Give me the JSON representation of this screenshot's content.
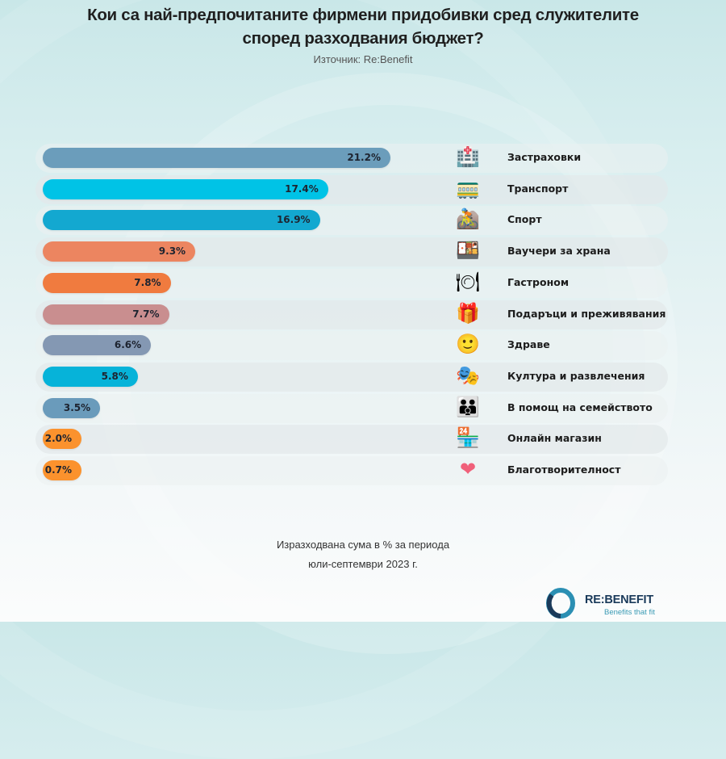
{
  "header": {
    "title_line1": "Кои са най-предпочитаните фирмени придобивки сред служителите",
    "title_line2": "според разходвания бюджет?",
    "source": "Източник: Re:Benefit"
  },
  "chart_data": {
    "type": "bar",
    "orientation": "horizontal",
    "title": "Кои са най-предпочитаните фирмени придобивки сред служителите според разходвания бюджет?",
    "subtitle": "Източник: Re:Benefit",
    "xlabel": "Изразходвана сума в % за периода юли-септември 2023 г.",
    "ylabel": "",
    "unit": "%",
    "grid": false,
    "legend": "none",
    "xlim": [
      0,
      21.2
    ],
    "categories": [
      "Застраховки",
      "Транспорт",
      "Спорт",
      "Ваучери за храна",
      "Гастроном",
      "Подаръци и преживявания",
      "Здраве",
      "Култура и развлечения",
      "В помощ на семейството",
      "Онлайн магазин",
      "Благотворителност"
    ],
    "values": [
      21.2,
      17.4,
      16.9,
      9.3,
      7.8,
      7.7,
      6.6,
      5.8,
      3.5,
      2.0,
      0.7
    ],
    "value_labels": [
      "21.2%",
      "17.4%",
      "16.9%",
      "9.3%",
      "7.8%",
      "7.7%",
      "6.6%",
      "5.8%",
      "3.5%",
      "2.0%",
      "0.7%"
    ],
    "colors": [
      "#6b9dbb",
      "#00c3e6",
      "#13a8d0",
      "#ec8560",
      "#f07b3f",
      "#c98e8f",
      "#8498b3",
      "#06b3d9",
      "#6a9bbb",
      "#fb922d",
      "#fb922d"
    ],
    "icons": [
      {
        "name": "hospital-icon",
        "glyph": "🏥"
      },
      {
        "name": "train-icon",
        "glyph": "🚃"
      },
      {
        "name": "cyclist-icon",
        "glyph": "🚵"
      },
      {
        "name": "bento-box-icon",
        "glyph": "🍱"
      },
      {
        "name": "plate-cutlery-icon",
        "glyph": "🍽"
      },
      {
        "name": "gift-icon",
        "glyph": "🎁"
      },
      {
        "name": "smiley-icon",
        "glyph": "🙂"
      },
      {
        "name": "theater-masks-icon",
        "glyph": "🎭"
      },
      {
        "name": "family-icon",
        "glyph": "👪"
      },
      {
        "name": "shop-icon",
        "glyph": "🏪"
      },
      {
        "name": "heart-icon",
        "glyph": "❤"
      }
    ]
  },
  "footer": {
    "note_line1": "Изразходвана сума в % за периода",
    "note_line2": "юли-септември 2023 г.",
    "logo_name": "RE:BENEFIT",
    "logo_tagline": "Benefits that fit",
    "brand_color_dark": "#1a3a5a",
    "brand_color_light": "#3a9bb5"
  }
}
